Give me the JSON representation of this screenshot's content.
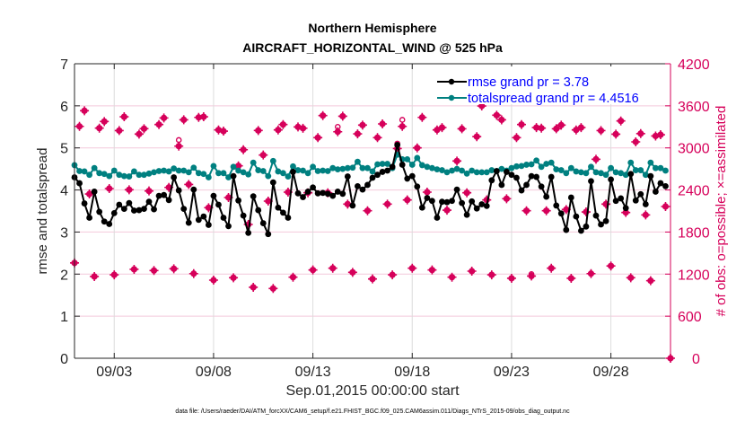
{
  "chart_data": {
    "type": "line",
    "title": [
      "Northern Hemisphere",
      "AIRCRAFT_HORIZONTAL_WIND @ 525 hPa"
    ],
    "xlabel": "Sep.01,2015 00:00:00 start",
    "ylabel": "rmse and totalspread",
    "ylabel_right": "# of obs: o=possible; ×=assimilated",
    "footnote": "data file: /Users/raeder/DAI/ATM_forcXX/CAM6_setup/f.e21.FHIST_BGC.f09_025.CAM6assim.011/Diags_NTrS_2015-09/obs_diag_output.nc",
    "x_unit": "days since Sep.01,2015 00:00:00",
    "x_step_days": 0.25,
    "xlim_days": [
      0,
      30
    ],
    "xticks": [
      {
        "day": 2,
        "label": "09/03"
      },
      {
        "day": 7,
        "label": "09/08"
      },
      {
        "day": 12,
        "label": "09/13"
      },
      {
        "day": 17,
        "label": "09/18"
      },
      {
        "day": 22,
        "label": "09/23"
      },
      {
        "day": 27,
        "label": "09/28"
      }
    ],
    "ylim": [
      0,
      7
    ],
    "yticks": [
      "0",
      "1",
      "2",
      "3",
      "4",
      "5",
      "6",
      "7"
    ],
    "ylim_right": [
      0,
      4200
    ],
    "yticks_right": [
      "0",
      "600",
      "1200",
      "1800",
      "2400",
      "3000",
      "3600",
      "4200"
    ],
    "grid": true,
    "legend_position": "top-right",
    "series": [
      {
        "name": "rmse grand pr = 3.78",
        "axis": "left",
        "color": "#000000",
        "values": [
          4.3,
          4.16,
          3.68,
          3.34,
          3.96,
          3.48,
          3.25,
          3.19,
          3.45,
          3.65,
          3.55,
          3.69,
          3.51,
          3.52,
          3.55,
          3.72,
          3.54,
          3.86,
          3.88,
          3.76,
          4.3,
          3.99,
          3.55,
          3.22,
          4.01,
          3.29,
          3.37,
          3.17,
          3.86,
          3.65,
          3.34,
          3.14,
          4.33,
          3.75,
          3.39,
          2.98,
          3.85,
          3.52,
          3.21,
          2.95,
          4.18,
          3.58,
          3.46,
          3.34,
          4.43,
          3.92,
          3.83,
          3.96,
          4.06,
          3.92,
          3.93,
          3.91,
          3.86,
          3.96,
          3.91,
          4.32,
          3.63,
          4.09,
          4.01,
          4.12,
          4.29,
          4.36,
          4.43,
          4.46,
          4.55,
          5.07,
          4.6,
          4.27,
          4.33,
          4.08,
          3.58,
          3.81,
          3.74,
          3.34,
          3.72,
          3.71,
          3.74,
          4.01,
          3.69,
          3.41,
          3.73,
          3.56,
          3.66,
          3.62,
          4.23,
          4.45,
          4.12,
          4.43,
          4.36,
          4.29,
          3.99,
          4.12,
          4.33,
          4.31,
          4.08,
          3.84,
          4.31,
          3.63,
          3.44,
          3.05,
          3.82,
          3.37,
          3.03,
          3.13,
          4.21,
          3.39,
          3.18,
          3.26,
          4.25,
          3.74,
          3.8,
          3.57,
          4.38,
          3.75,
          3.9,
          3.66,
          4.33,
          3.96,
          4.16,
          4.09
        ]
      },
      {
        "name": "totalspread grand pr = 4.4516",
        "axis": "left",
        "color": "#008080",
        "values": [
          4.59,
          4.45,
          4.44,
          4.36,
          4.52,
          4.4,
          4.38,
          4.33,
          4.46,
          4.36,
          4.33,
          4.32,
          4.44,
          4.36,
          4.36,
          4.39,
          4.42,
          4.45,
          4.46,
          4.44,
          4.51,
          4.46,
          4.46,
          4.42,
          4.53,
          4.4,
          4.38,
          4.3,
          4.57,
          4.4,
          4.4,
          4.3,
          4.55,
          4.46,
          4.42,
          4.37,
          4.65,
          4.47,
          4.45,
          4.33,
          4.69,
          4.44,
          4.4,
          4.32,
          4.56,
          4.47,
          4.46,
          4.4,
          4.55,
          4.45,
          4.46,
          4.45,
          4.52,
          4.49,
          4.5,
          4.52,
          4.53,
          4.67,
          4.52,
          4.52,
          4.44,
          4.61,
          4.62,
          4.62,
          4.52,
          4.84,
          4.73,
          4.73,
          4.6,
          4.76,
          4.59,
          4.55,
          4.52,
          4.49,
          4.47,
          4.42,
          4.46,
          4.5,
          4.46,
          4.39,
          4.46,
          4.42,
          4.42,
          4.42,
          4.47,
          4.45,
          4.5,
          4.46,
          4.52,
          4.56,
          4.57,
          4.6,
          4.61,
          4.7,
          4.55,
          4.62,
          4.65,
          4.49,
          4.47,
          4.4,
          4.52,
          4.44,
          4.42,
          4.4,
          4.55,
          4.42,
          4.4,
          4.36,
          4.52,
          4.42,
          4.4,
          4.36,
          4.65,
          4.47,
          4.47,
          4.36,
          4.65,
          4.52,
          4.52,
          4.46
        ]
      },
      {
        "name": "obs assimilated",
        "axis": "right",
        "marker": "×",
        "color": "#d6005a",
        "values": [
          1360,
          3307,
          3530,
          2343,
          1166,
          3282,
          3376,
          2420,
          1190,
          3247,
          3444,
          2403,
          1268,
          3197,
          3274,
          2386,
          1251,
          3333,
          3427,
          2436,
          1276,
          3025,
          3401,
          2479,
          1207,
          3435,
          3444,
          2147,
          1114,
          3256,
          3239,
          2292,
          1148,
          2744,
          2974,
          1908,
          1012,
          3248,
          2898,
          2241,
          995,
          3256,
          3333,
          2369,
          1156,
          3299,
          3280,
          2360,
          1259,
          3146,
          3461,
          2360,
          1284,
          3230,
          3452,
          2198,
          1225,
          3200,
          3325,
          2104,
          1131,
          3146,
          3342,
          2198,
          1190,
          2991,
          3307,
          2258,
          1284,
          3000,
          3435,
          2369,
          1259,
          3256,
          3290,
          2112,
          1156,
          2813,
          3273,
          2360,
          1242,
          3160,
          3598,
          2258,
          1190,
          3466,
          3400,
          2275,
          1140,
          3146,
          3333,
          2104,
          1173,
          3290,
          3282,
          2104,
          1284,
          3273,
          3325,
          2121,
          1140,
          3256,
          3290,
          2087,
          1207,
          2838,
          3247,
          2198,
          1316,
          3196,
          3384,
          2079,
          1148,
          3086,
          3204,
          2044,
          1106,
          3170,
          3188,
          2164,
          0
        ]
      },
      {
        "name": "obs possible",
        "axis": "right",
        "marker": "o",
        "color": "#d6005a",
        "values": [
          1360,
          3307,
          3530,
          2343,
          1166,
          3282,
          3376,
          2420,
          1190,
          3247,
          3444,
          2403,
          1268,
          3197,
          3274,
          2386,
          1251,
          3333,
          3427,
          2436,
          1276,
          3112,
          3401,
          2479,
          1207,
          3435,
          3444,
          2147,
          1114,
          3256,
          3239,
          2292,
          1148,
          2744,
          2974,
          1908,
          1012,
          3248,
          2898,
          2241,
          995,
          3256,
          3333,
          2369,
          1156,
          3299,
          3280,
          2360,
          1259,
          3146,
          3461,
          2360,
          1284,
          3300,
          3452,
          2198,
          1225,
          3200,
          3325,
          2104,
          1131,
          3146,
          3342,
          2198,
          1190,
          3062,
          3400,
          2258,
          1284,
          3000,
          3435,
          2369,
          1259,
          3256,
          3290,
          2112,
          1156,
          2813,
          3273,
          2360,
          1242,
          3160,
          3598,
          2258,
          1190,
          3466,
          3400,
          2275,
          1140,
          3146,
          3333,
          2104,
          1200,
          3290,
          3282,
          2104,
          1284,
          3273,
          3325,
          2121,
          1140,
          3256,
          3290,
          2087,
          1207,
          2838,
          3247,
          2198,
          1316,
          3196,
          3384,
          2079,
          1148,
          3086,
          3204,
          2044,
          1106,
          3170,
          3188,
          2164,
          0
        ]
      }
    ]
  }
}
